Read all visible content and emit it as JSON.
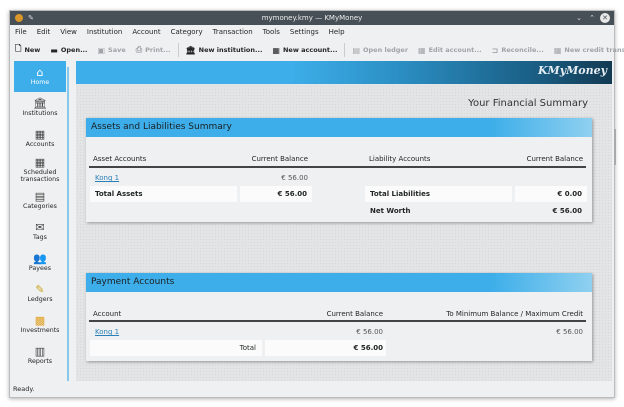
{
  "window": {
    "title": "mymoney.kmy — KMyMoney"
  },
  "menu": [
    "File",
    "Edit",
    "View",
    "Institution",
    "Account",
    "Category",
    "Transaction",
    "Tools",
    "Settings",
    "Help"
  ],
  "toolbar": [
    {
      "label": "New",
      "icon": "new-file-icon",
      "enabled": true
    },
    {
      "label": "Open...",
      "icon": "folder-open-icon",
      "enabled": true
    },
    {
      "label": "Save",
      "icon": "save-icon",
      "enabled": false
    },
    {
      "label": "Print...",
      "icon": "print-icon",
      "enabled": false
    },
    {
      "label": "New institution...",
      "icon": "institution-icon",
      "enabled": true
    },
    {
      "label": "New account...",
      "icon": "account-icon",
      "enabled": true
    },
    {
      "label": "Open ledger",
      "icon": "ledger-icon",
      "enabled": false
    },
    {
      "label": "Edit account...",
      "icon": "edit-account-icon",
      "enabled": false
    },
    {
      "label": "Reconcile...",
      "icon": "reconcile-icon",
      "enabled": false
    },
    {
      "label": "New credit transfer",
      "icon": "credit-transfer-icon",
      "enabled": false
    }
  ],
  "sidebar": [
    {
      "label": "Home",
      "icon": "home-icon",
      "active": true
    },
    {
      "label": "Institutions",
      "icon": "institution-icon"
    },
    {
      "label": "Accounts",
      "icon": "accounts-icon"
    },
    {
      "label": "Scheduled transactions",
      "icon": "calendar-icon"
    },
    {
      "label": "Categories",
      "icon": "categories-icon"
    },
    {
      "label": "Tags",
      "icon": "tag-icon"
    },
    {
      "label": "Payees",
      "icon": "payees-icon"
    },
    {
      "label": "Ledgers",
      "icon": "ledger-icon"
    },
    {
      "label": "Investments",
      "icon": "investments-icon"
    },
    {
      "label": "Reports",
      "icon": "reports-icon"
    }
  ],
  "banner": {
    "logo": "KMyMoney"
  },
  "summary_title": "Your Financial Summary",
  "assets": {
    "title": "Assets and Liabilities Summary",
    "asset_header": "Asset Accounts",
    "asset_balance_header": "Current Balance",
    "liability_header": "Liability Accounts",
    "liability_balance_header": "Current Balance",
    "rows": [
      {
        "account": "Kong 1",
        "balance": "€ 56.00"
      }
    ],
    "total_assets_label": "Total Assets",
    "total_assets": "€ 56.00",
    "total_liabilities_label": "Total Liabilities",
    "total_liabilities": "€ 0.00",
    "net_worth_label": "Net Worth",
    "net_worth": "€ 56.00"
  },
  "payments": {
    "title": "Payment Accounts",
    "headers": [
      "Account",
      "Current Balance",
      "To Minimum Balance / Maximum Credit"
    ],
    "rows": [
      {
        "account": "Kong 1",
        "balance": "€ 56.00",
        "to_min": "€ 56.00"
      }
    ],
    "total_label": "Total",
    "total": "€ 56.00"
  },
  "status": "Ready.",
  "colors": {
    "accent": "#3daee9",
    "titlebar": "#475057",
    "link": "#2980b9"
  }
}
